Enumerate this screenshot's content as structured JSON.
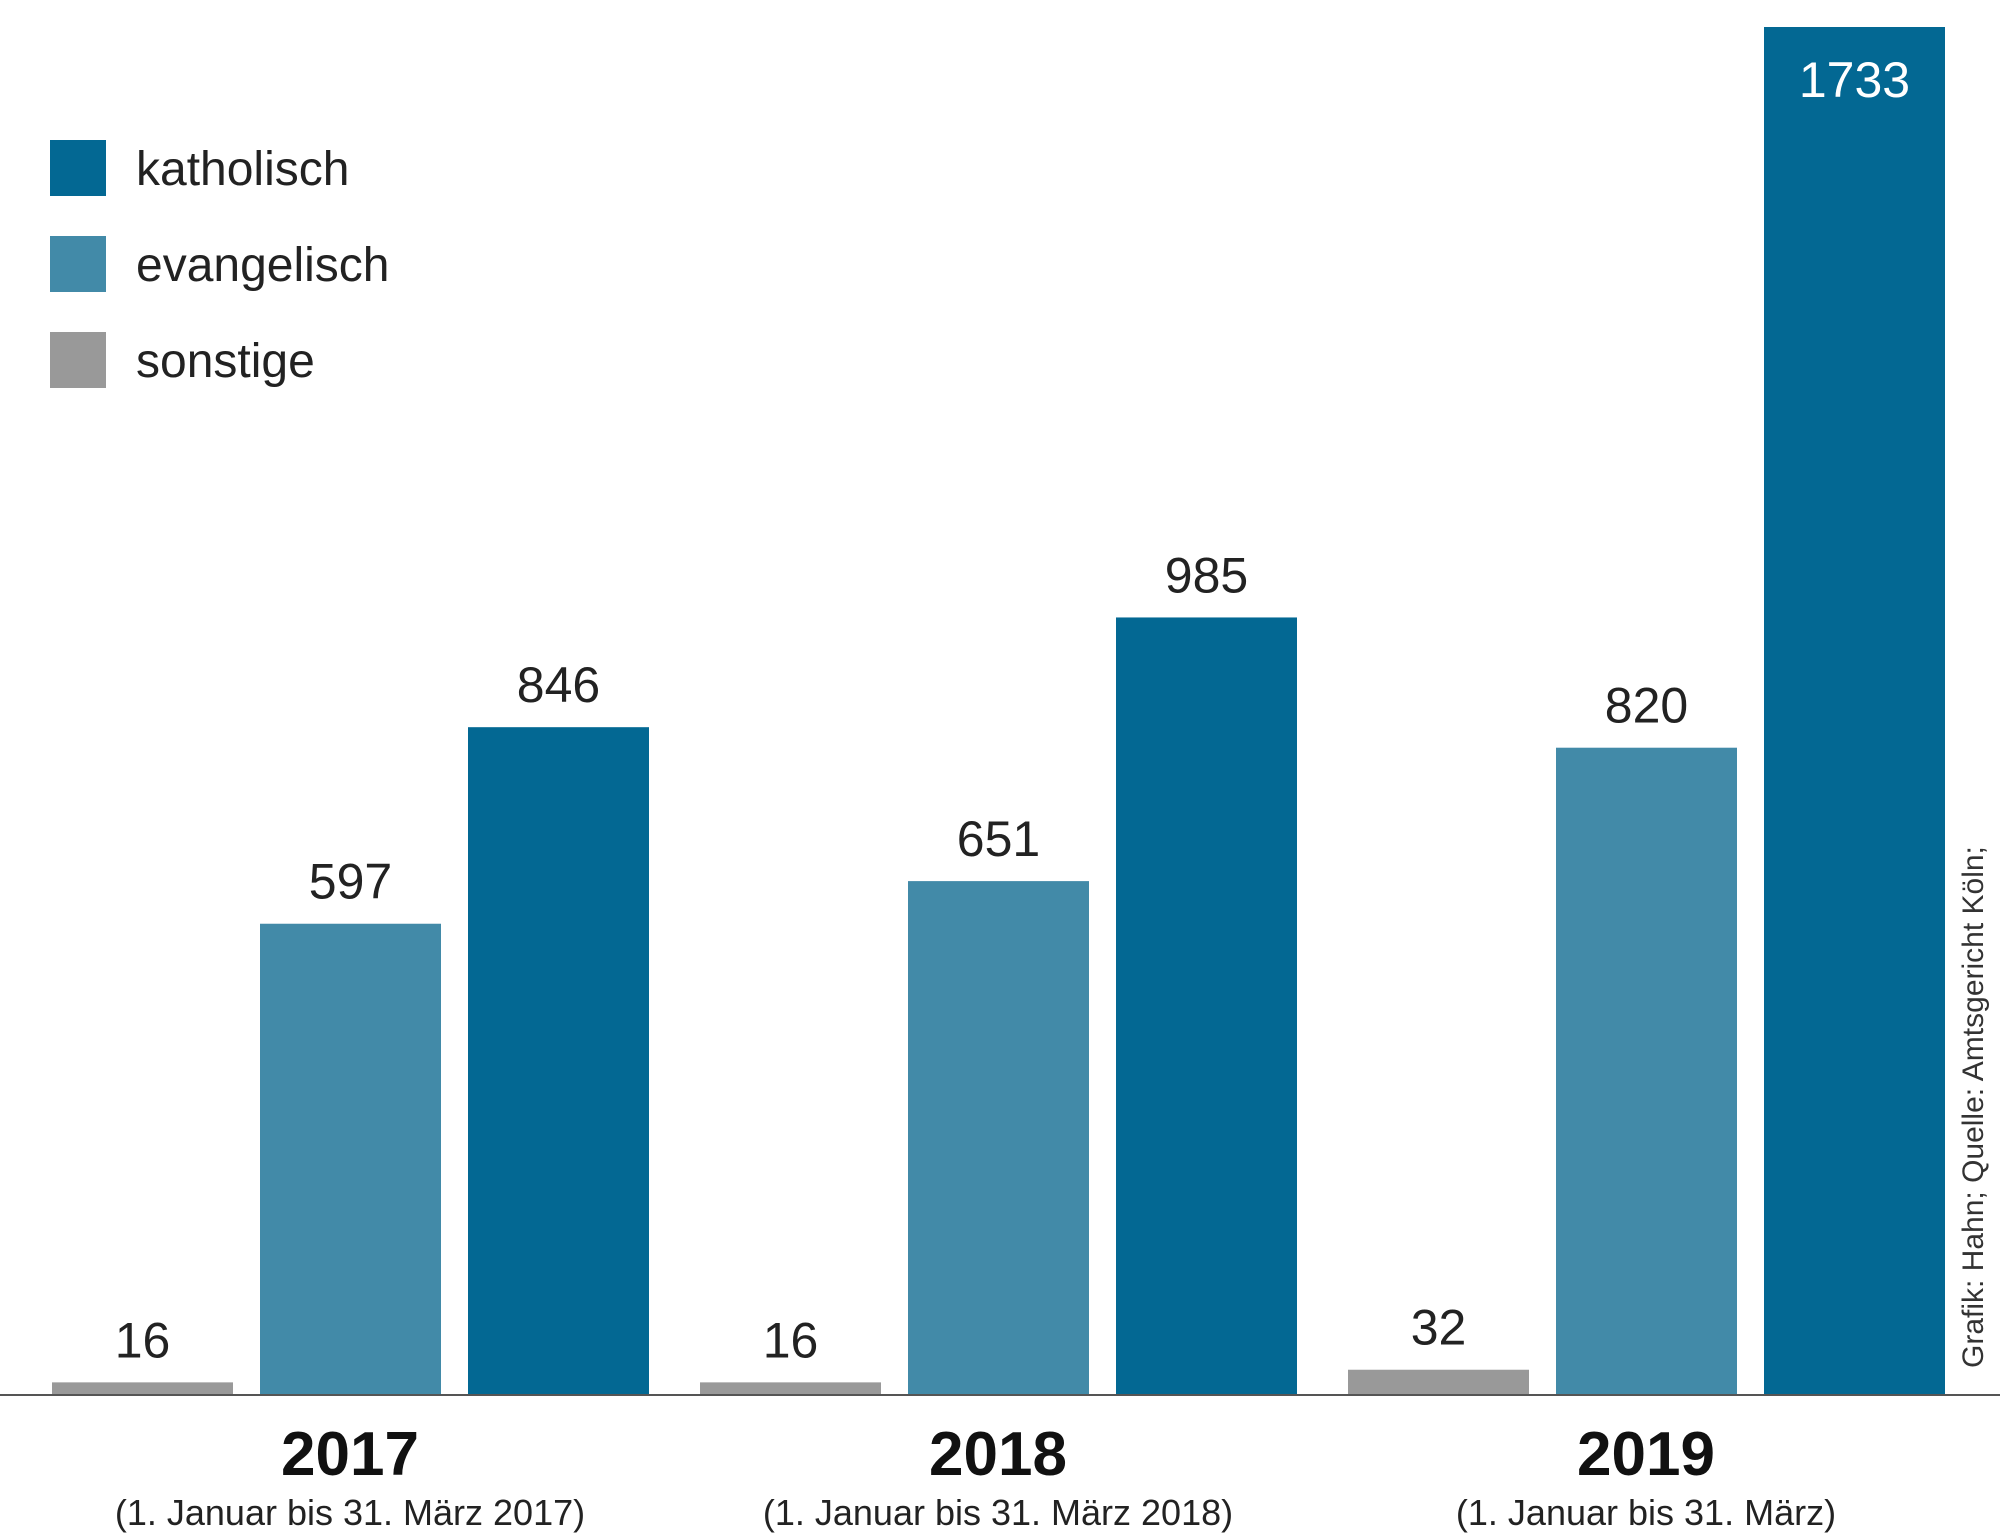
{
  "chart_data": {
    "type": "bar",
    "categories": [
      "2017",
      "2018",
      "2019"
    ],
    "category_subtitles": [
      "(1. Januar bis 31. März 2017)",
      "(1. Januar bis 31. März 2018)",
      "(1. Januar bis 31. März)"
    ],
    "series": [
      {
        "name": "sonstige",
        "values": [
          16,
          16,
          32
        ],
        "color": "#999999"
      },
      {
        "name": "evangelisch",
        "values": [
          597,
          651,
          820
        ],
        "color": "#428aa8"
      },
      {
        "name": "katholisch",
        "values": [
          846,
          985,
          1733
        ],
        "color": "#036893"
      }
    ],
    "legend_order": [
      "katholisch",
      "evangelisch",
      "sonstige"
    ],
    "legend_position": "top-left",
    "ylim": [
      0,
      1733
    ],
    "grid": false,
    "credit": "Grafik: Hahn; Quelle: Amtsgericht Köln;"
  }
}
